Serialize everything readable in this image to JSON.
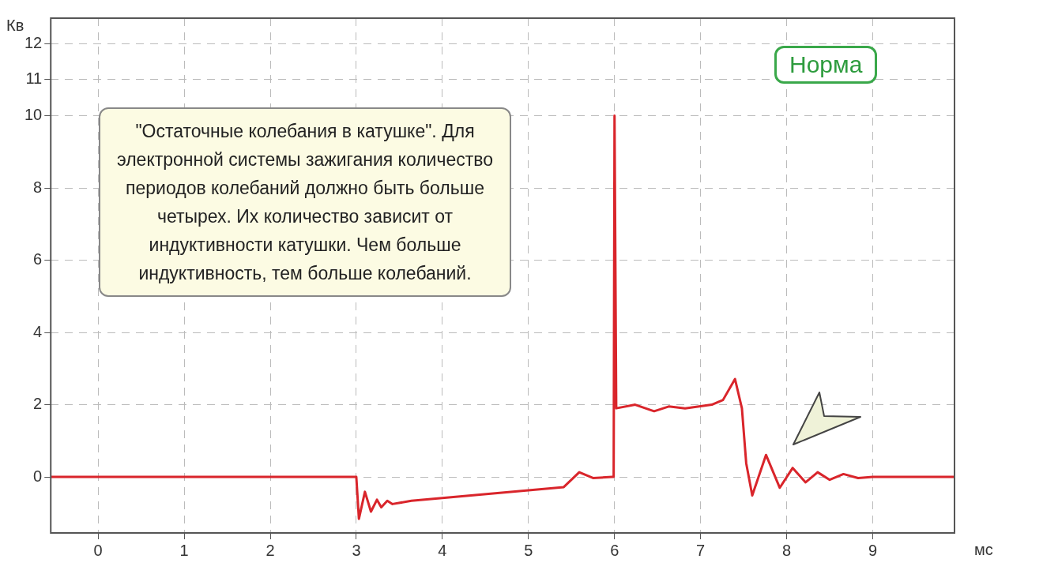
{
  "chart_data": {
    "type": "line",
    "xlabel": "мс",
    "ylabel": "Кв",
    "xlim": [
      -0.55,
      9.95
    ],
    "xticks": [
      0,
      1,
      2,
      3,
      4,
      5,
      6,
      7,
      8,
      9
    ],
    "ylim": [
      -1.55,
      12.7
    ],
    "yticks": [
      0,
      2,
      4,
      6,
      8,
      10,
      11,
      12
    ],
    "grid": true,
    "legend": false,
    "marker": "none",
    "line_style": "solid",
    "series": [
      {
        "color": "#d9252b",
        "x": [
          -0.55,
          3.0,
          3.03,
          3.1,
          3.17,
          3.24,
          3.29,
          3.36,
          3.42,
          3.64,
          5.41,
          5.59,
          5.75,
          5.97,
          5.99,
          6.0,
          6.02,
          6.24,
          6.46,
          6.63,
          6.82,
          7.13,
          7.26,
          7.4,
          7.48,
          7.53,
          7.6,
          7.76,
          7.92,
          8.07,
          8.22,
          8.36,
          8.5,
          8.66,
          8.83,
          9.0,
          9.95
        ],
        "values": [
          0,
          0,
          -1.16,
          -0.41,
          -0.96,
          -0.63,
          -0.84,
          -0.66,
          -0.75,
          -0.66,
          -0.28,
          0.13,
          -0.03,
          0,
          0,
          10,
          1.9,
          2.0,
          1.82,
          1.95,
          1.9,
          2.0,
          2.13,
          2.71,
          1.9,
          0.38,
          -0.51,
          0.61,
          -0.3,
          0.25,
          -0.15,
          0.13,
          -0.08,
          0.08,
          -0.03,
          0,
          0
        ]
      }
    ],
    "annotations": [
      "\"Остаточные колебания в катушке\". Для электронной системы зажигания количество периодов колебаний должно быть больше четырех. Их количество зависит от индуктивности катушки. Чем больше индуктивность, тем больше колебаний.",
      "Норма"
    ]
  }
}
